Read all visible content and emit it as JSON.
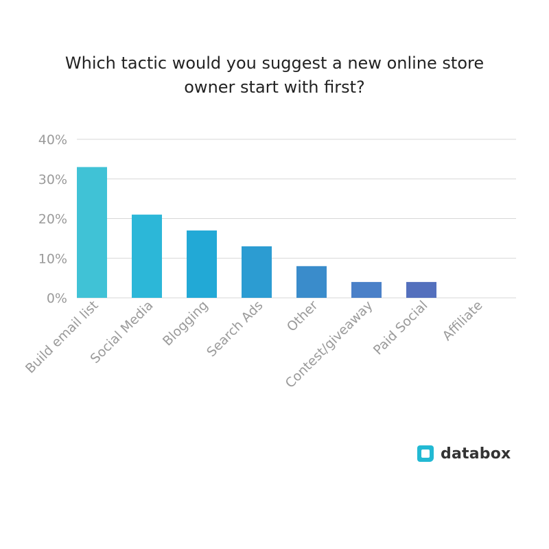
{
  "title": {
    "line1": "Which tactic would you suggest a new online store",
    "line2": "owner start with first?"
  },
  "chart_data": {
    "type": "bar",
    "categories": [
      "Build email list",
      "Social Media",
      "Blogging",
      "Search Ads",
      "Other",
      "Contest/giveaway",
      "Paid Social",
      "Affiliate"
    ],
    "values": [
      33,
      21,
      17,
      13,
      8,
      4,
      4,
      0
    ],
    "unit": "%",
    "ylim": [
      0,
      40
    ],
    "yticks": [
      0,
      10,
      20,
      30,
      40
    ],
    "ytick_labels": [
      "0%",
      "10%",
      "20%",
      "30%",
      "40%"
    ],
    "grid": true,
    "colors": [
      "#40c2d6",
      "#2cb7d8",
      "#22a9d6",
      "#2c9cd2",
      "#3a8ccb",
      "#4a80c8",
      "#5470bd",
      "#5470bd"
    ],
    "grid_color": "#d7d7d7",
    "axis_label_color": "#9a9a9a"
  },
  "brand": {
    "name": "databox",
    "color": "#22b9d3",
    "icon": "databox-logo-icon"
  }
}
